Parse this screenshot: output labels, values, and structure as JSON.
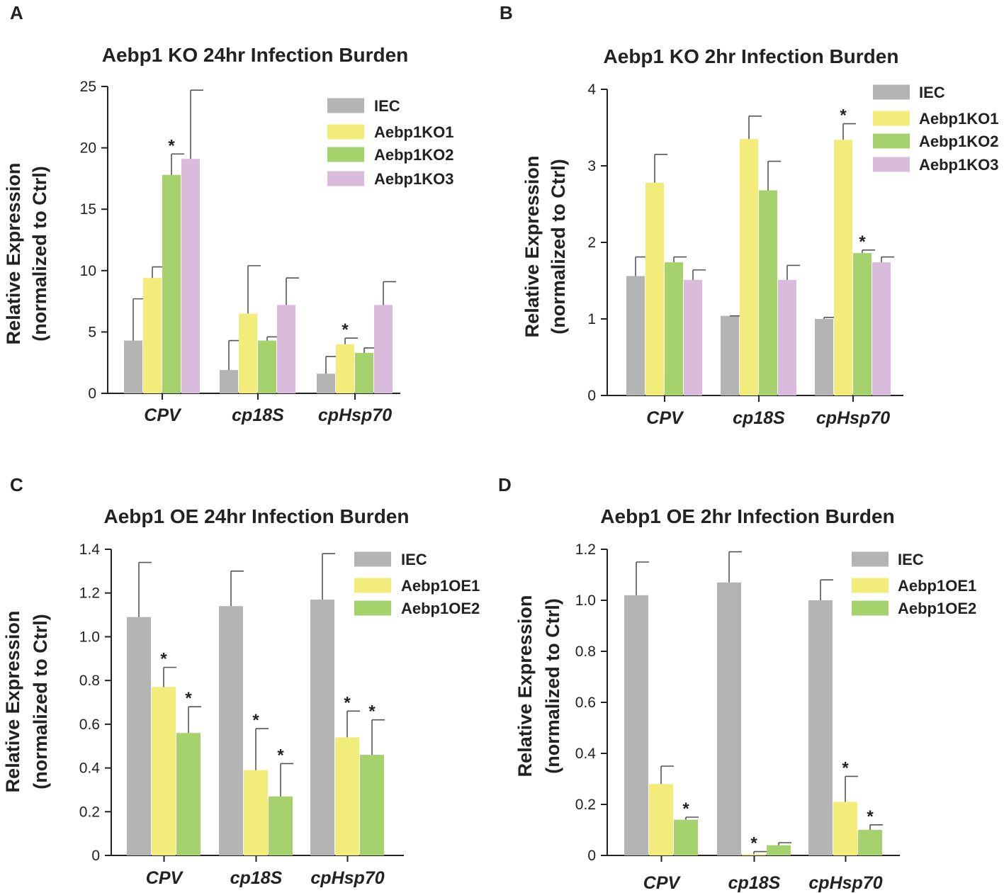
{
  "figure": {
    "colors": {
      "IEC": "#b4b4b4",
      "KO1": "#f2ec7a",
      "KO2": "#a6d26e",
      "KO3": "#d9bcdc",
      "axis": "#222222",
      "error": "#555555"
    }
  },
  "chart_data": [
    {
      "panel": "A",
      "type": "bar",
      "title": "Aebp1 KO 24hr Infection Burden",
      "ylabel_line1": "Relative Expression",
      "ylabel_line2": "(normalized to Ctrl)",
      "xlabel": "",
      "ylim": [
        0,
        25
      ],
      "yticks": [
        0,
        5,
        10,
        15,
        20,
        25
      ],
      "ytick_labels": [
        "0",
        "5",
        "10",
        "15",
        "20",
        "25"
      ],
      "categories": [
        "CPV",
        "cp18S",
        "cpHsp70"
      ],
      "series": [
        {
          "name": "IEC",
          "color_key": "IEC",
          "values": [
            4.3,
            1.9,
            1.6
          ],
          "errors": [
            3.4,
            2.4,
            1.4
          ],
          "sig": [
            false,
            false,
            false
          ]
        },
        {
          "name": "Aebp1KO1",
          "color_key": "KO1",
          "values": [
            9.4,
            6.5,
            4.0
          ],
          "errors": [
            0.9,
            3.9,
            0.5
          ],
          "sig": [
            false,
            false,
            true
          ]
        },
        {
          "name": "Aebp1KO2",
          "color_key": "KO2",
          "values": [
            17.8,
            4.3,
            3.3
          ],
          "errors": [
            1.7,
            0.3,
            0.4
          ],
          "sig": [
            true,
            false,
            false
          ]
        },
        {
          "name": "Aebp1KO3",
          "color_key": "KO3",
          "values": [
            19.1,
            7.2,
            7.2
          ],
          "errors": [
            5.6,
            2.2,
            1.9
          ],
          "sig": [
            false,
            false,
            false
          ]
        }
      ],
      "significance_marker": "*"
    },
    {
      "panel": "B",
      "type": "bar",
      "title": "Aebp1 KO 2hr Infection Burden",
      "ylabel_line1": "Relative Expression",
      "ylabel_line2": "(normalized to Ctrl)",
      "xlabel": "",
      "ylim": [
        0,
        4
      ],
      "yticks": [
        0,
        1,
        2,
        3,
        4
      ],
      "ytick_labels": [
        "0",
        "1",
        "2",
        "3",
        "4"
      ],
      "categories": [
        "CPV",
        "cp18S",
        "cpHsp70"
      ],
      "series": [
        {
          "name": "IEC",
          "color_key": "IEC",
          "values": [
            1.56,
            1.04,
            1.0
          ],
          "errors": [
            0.25,
            0.0,
            0.02
          ],
          "sig": [
            false,
            false,
            false
          ]
        },
        {
          "name": "Aebp1KO1",
          "color_key": "KO1",
          "values": [
            2.78,
            3.35,
            3.34
          ],
          "errors": [
            0.37,
            0.3,
            0.21
          ],
          "sig": [
            false,
            false,
            true
          ]
        },
        {
          "name": "Aebp1KO2",
          "color_key": "KO2",
          "values": [
            1.74,
            2.68,
            1.86
          ],
          "errors": [
            0.07,
            0.38,
            0.04
          ],
          "sig": [
            false,
            false,
            true
          ]
        },
        {
          "name": "Aebp1KO3",
          "color_key": "KO3",
          "values": [
            1.51,
            1.51,
            1.74
          ],
          "errors": [
            0.13,
            0.19,
            0.07
          ],
          "sig": [
            false,
            false,
            false
          ]
        }
      ],
      "significance_marker": "*"
    },
    {
      "panel": "C",
      "type": "bar",
      "title": "Aebp1 OE 24hr Infection Burden",
      "ylabel_line1": "Relative Expression",
      "ylabel_line2": "(normalized to Ctrl)",
      "xlabel": "",
      "ylim": [
        0,
        1.4
      ],
      "yticks": [
        0,
        0.2,
        0.4,
        0.6,
        0.8,
        1.0,
        1.2,
        1.4
      ],
      "ytick_labels": [
        "0",
        "0.2",
        "0.4",
        "0.6",
        "0.8",
        "1.0",
        "1.2",
        "1.4"
      ],
      "categories": [
        "CPV",
        "cp18S",
        "cpHsp70"
      ],
      "series": [
        {
          "name": "IEC",
          "color_key": "IEC",
          "values": [
            1.09,
            1.14,
            1.17
          ],
          "errors": [
            0.25,
            0.16,
            0.21
          ],
          "sig": [
            false,
            false,
            false
          ]
        },
        {
          "name": "Aebp1OE1",
          "color_key": "KO1",
          "values": [
            0.77,
            0.39,
            0.54
          ],
          "errors": [
            0.09,
            0.19,
            0.12
          ],
          "sig": [
            true,
            true,
            true
          ]
        },
        {
          "name": "Aebp1OE2",
          "color_key": "KO2",
          "values": [
            0.56,
            0.27,
            0.46
          ],
          "errors": [
            0.12,
            0.15,
            0.16
          ],
          "sig": [
            true,
            true,
            true
          ]
        }
      ],
      "significance_marker": "*"
    },
    {
      "panel": "D",
      "type": "bar",
      "title": "Aebp1 OE 2hr Infection Burden",
      "ylabel_line1": "Relative Expression",
      "ylabel_line2": "(normalized to Ctrl)",
      "xlabel": "",
      "ylim": [
        0,
        1.2
      ],
      "yticks": [
        0,
        0.2,
        0.4,
        0.6,
        0.8,
        1.0,
        1.2
      ],
      "ytick_labels": [
        "0",
        "0.2",
        "0.4",
        "0.6",
        "0.8",
        "1.0",
        "1.2"
      ],
      "categories": [
        "CPV",
        "cp18S",
        "cpHsp70"
      ],
      "series": [
        {
          "name": "IEC",
          "color_key": "IEC",
          "values": [
            1.02,
            1.07,
            1.0
          ],
          "errors": [
            0.13,
            0.12,
            0.08
          ],
          "sig": [
            false,
            false,
            false
          ]
        },
        {
          "name": "Aebp1OE1",
          "color_key": "KO1",
          "values": [
            0.28,
            0.005,
            0.21
          ],
          "errors": [
            0.07,
            0.01,
            0.1
          ],
          "sig": [
            false,
            true,
            true
          ]
        },
        {
          "name": "Aebp1OE2",
          "color_key": "KO2",
          "values": [
            0.14,
            0.04,
            0.1
          ],
          "errors": [
            0.01,
            0.01,
            0.02
          ],
          "sig": [
            true,
            false,
            true
          ]
        }
      ],
      "significance_marker": "*"
    }
  ]
}
